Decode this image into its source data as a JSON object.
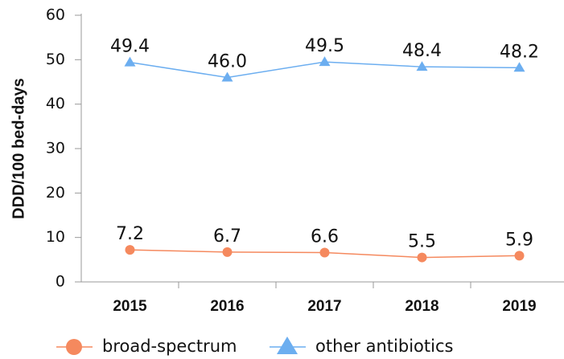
{
  "chart_data": {
    "type": "line",
    "y_label": "DDD/100 bed-days",
    "categories": [
      "2015",
      "2016",
      "2017",
      "2018",
      "2019"
    ],
    "series": [
      {
        "name": "broad-spectrum",
        "color": "#f5895e",
        "marker": "circle",
        "values": [
          7.2,
          6.7,
          6.6,
          5.5,
          5.9
        ],
        "value_labels": [
          "7.2",
          "6.7",
          "6.6",
          "5.5",
          "5.9"
        ]
      },
      {
        "name": "other antibiotics",
        "color": "#6caef0",
        "marker": "triangle",
        "values": [
          49.4,
          46.0,
          49.5,
          48.4,
          48.2
        ],
        "value_labels": [
          "49.4",
          "46.0",
          "49.5",
          "48.4",
          "48.2"
        ]
      }
    ],
    "ylim": [
      0,
      60
    ],
    "yticks": [
      0,
      10,
      20,
      30,
      40,
      50,
      60
    ],
    "grid": false,
    "legend": "bottom"
  }
}
